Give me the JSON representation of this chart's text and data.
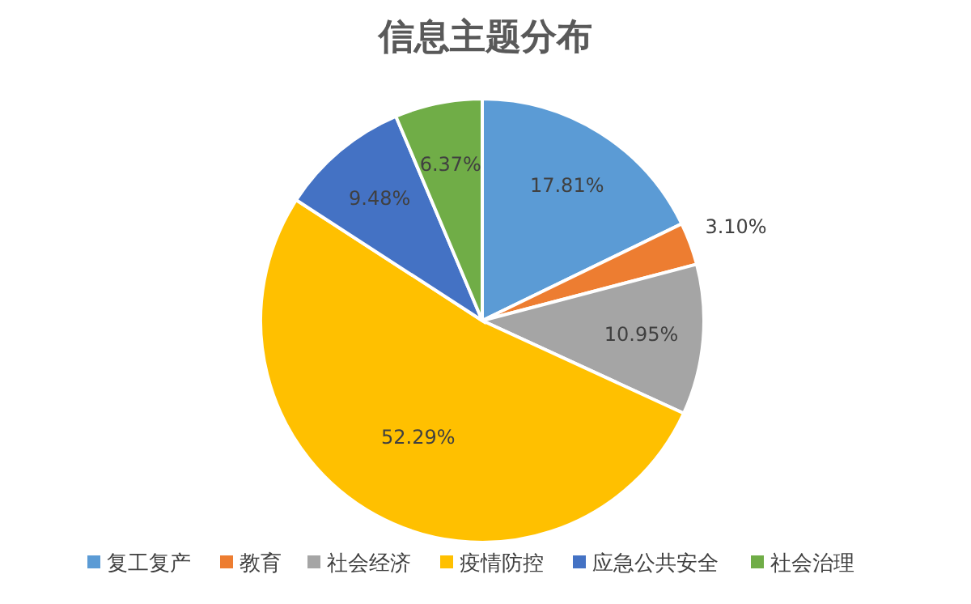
{
  "chart_data": {
    "type": "pie",
    "title": "信息主题分布",
    "categories": [
      "复工复产",
      "教育",
      "社会经济",
      "疫情防控",
      "应急公共安全",
      "社会治理"
    ],
    "values": [
      17.81,
      3.1,
      10.95,
      52.29,
      9.48,
      6.37
    ],
    "value_labels": [
      "17.81%",
      "3.10%",
      "10.95%",
      "52.29%",
      "9.48%",
      "6.37%"
    ],
    "colors": [
      "#5b9bd5",
      "#ed7d31",
      "#a5a5a5",
      "#ffc000",
      "#4472c4",
      "#70ad47"
    ],
    "legend": "bottom"
  }
}
